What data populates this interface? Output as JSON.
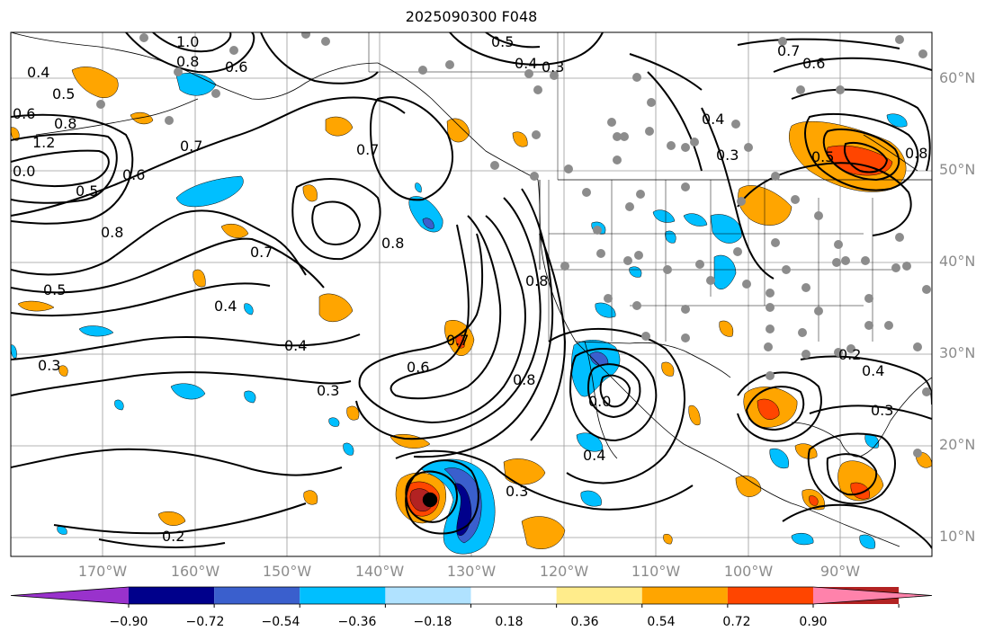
{
  "title": "2025090300 F048",
  "map": {
    "lat_labels": [
      "60°N",
      "50°N",
      "40°N",
      "30°N",
      "20°N",
      "10°N"
    ],
    "lon_labels": [
      "170°W",
      "160°W",
      "150°W",
      "140°W",
      "130°W",
      "120°W",
      "110°W",
      "100°W",
      "90°W"
    ],
    "contour_labels": [
      {
        "id": "c01",
        "text": "0.4"
      },
      {
        "id": "c02",
        "text": "0.5"
      },
      {
        "id": "c03",
        "text": "0.8"
      },
      {
        "id": "c04",
        "text": "1.2"
      },
      {
        "id": "c05",
        "text": "0.5"
      },
      {
        "id": "c06",
        "text": "0.6"
      },
      {
        "id": "c07",
        "text": "0.7"
      },
      {
        "id": "c08",
        "text": "0.8"
      },
      {
        "id": "c09",
        "text": "0.7"
      },
      {
        "id": "c10",
        "text": "0.5"
      },
      {
        "id": "c11",
        "text": "0.4"
      },
      {
        "id": "c12",
        "text": "0.3"
      },
      {
        "id": "c13",
        "text": "0.4"
      },
      {
        "id": "c14",
        "text": "0.3"
      },
      {
        "id": "c15",
        "text": "0.2"
      },
      {
        "id": "c16",
        "text": "0.7"
      },
      {
        "id": "c17",
        "text": "0.8"
      },
      {
        "id": "c18",
        "text": "0.6"
      },
      {
        "id": "c19",
        "text": "0.7"
      },
      {
        "id": "c20",
        "text": "0.8"
      },
      {
        "id": "c21",
        "text": "0.8"
      },
      {
        "id": "c22",
        "text": "0.4"
      },
      {
        "id": "c23",
        "text": "0.3"
      },
      {
        "id": "c24",
        "text": "0.5"
      },
      {
        "id": "c25",
        "text": "0.4"
      },
      {
        "id": "c26",
        "text": "0.3"
      },
      {
        "id": "c27",
        "text": "0.7"
      },
      {
        "id": "c28",
        "text": "0.6"
      },
      {
        "id": "c29",
        "text": "0.4"
      },
      {
        "id": "c30",
        "text": "0.3"
      },
      {
        "id": "c31",
        "text": "0.4"
      },
      {
        "id": "c32",
        "text": "0.3"
      },
      {
        "id": "c33",
        "text": "1.0"
      },
      {
        "id": "c34",
        "text": "0.8"
      },
      {
        "id": "c35",
        "text": "0.6"
      },
      {
        "id": "c36",
        "text": "0.6"
      },
      {
        "id": "c37",
        "text": "0.0"
      },
      {
        "id": "c38",
        "text": "0.0"
      },
      {
        "id": "c39",
        "text": "0.8"
      },
      {
        "id": "c40",
        "text": "0.5"
      },
      {
        "id": "c41",
        "text": "0.2"
      }
    ]
  },
  "colorbar": {
    "levels": [
      -0.9,
      -0.72,
      -0.54,
      -0.36,
      -0.18,
      0.18,
      0.36,
      0.54,
      0.72,
      0.9
    ],
    "tick_labels": [
      "−0.90",
      "−0.72",
      "−0.54",
      "−0.36",
      "−0.18",
      "0.18",
      "0.36",
      "0.54",
      "0.72",
      "0.90"
    ],
    "colors": [
      "#9932cc",
      "#00008b",
      "#3a5fcd",
      "#00bfff",
      "#b0e2ff",
      "#ffffff",
      "#ffec8b",
      "#ffa500",
      "#ff4500",
      "#b22222",
      "#ff82ab"
    ]
  }
}
